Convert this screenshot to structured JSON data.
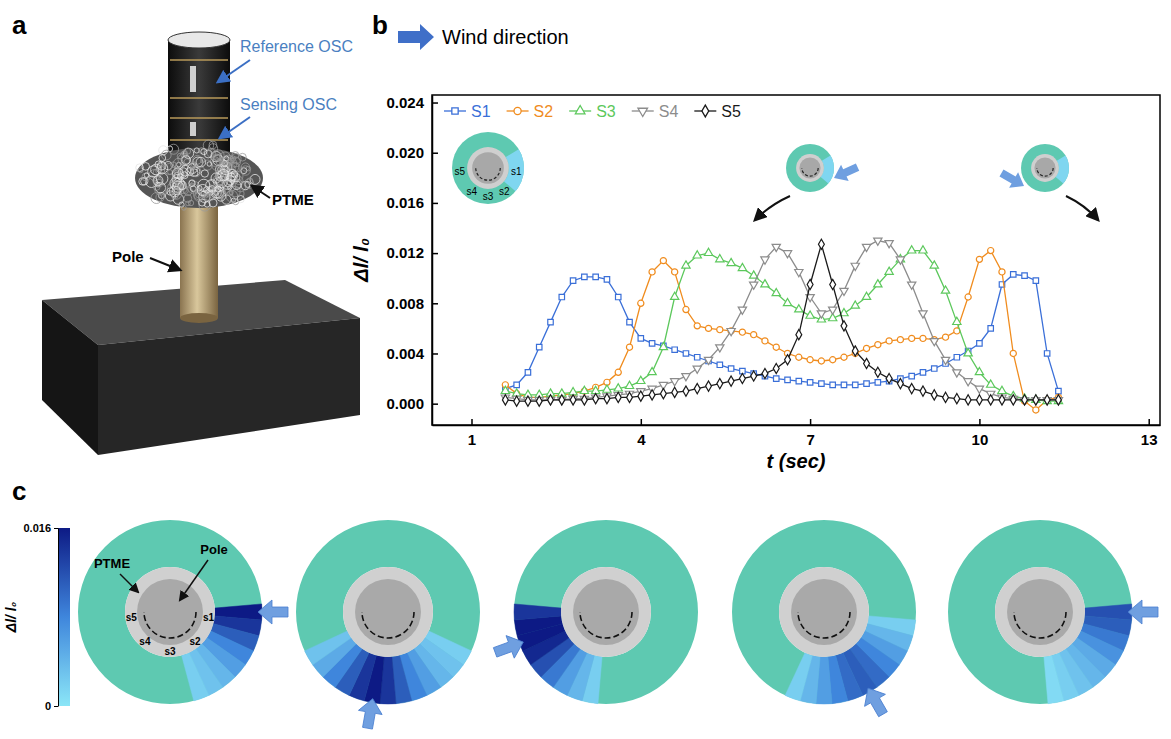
{
  "panel_labels": [
    "a",
    "b",
    "c"
  ],
  "diagram": {
    "labels": [
      "Reference OSC",
      "Sensing OSC",
      "PTME",
      "Pole"
    ]
  },
  "chart_data": [
    {
      "type": "line",
      "annotations": [
        "Wind direction"
      ],
      "xlabel": "t (sec)",
      "ylabel": "Δl/ l₀",
      "x": [
        1.6,
        1.8,
        2,
        2.2,
        2.4,
        2.6,
        2.8,
        3,
        3.2,
        3.4,
        3.6,
        3.8,
        4,
        4.2,
        4.4,
        4.6,
        4.8,
        5,
        5.2,
        5.4,
        5.6,
        5.8,
        6,
        6.2,
        6.4,
        6.6,
        6.8,
        7,
        7.2,
        7.4,
        7.6,
        7.8,
        8,
        8.2,
        8.4,
        8.6,
        8.8,
        9,
        9.2,
        9.4,
        9.6,
        9.8,
        10,
        10.2,
        10.4,
        10.6,
        10.8,
        11,
        11.2,
        11.4
      ],
      "xlim": [
        0.3,
        13.2
      ],
      "xticks": [
        1,
        4,
        7,
        10,
        13
      ],
      "ylim": [
        -0.0017,
        0.0246
      ],
      "yticks": [
        {
          "value": 0,
          "label": "0.000"
        },
        0.004,
        0.008,
        0.012,
        0.016,
        {
          "value": 0.02,
          "label": "0.020"
        },
        0.024
      ],
      "grid": false,
      "legend": "upper left",
      "inset_labels": [
        "s1",
        "s2",
        "s3",
        "s4",
        "s5"
      ],
      "series": [
        {
          "name": "S1",
          "color": "#3a6fd8",
          "marker": "square",
          "values": [
            0.0012,
            0.0015,
            0.0025,
            0.0045,
            0.0065,
            0.0085,
            0.0098,
            0.0101,
            0.0101,
            0.0099,
            0.0085,
            0.0065,
            0.0052,
            0.0048,
            0.0046,
            0.0043,
            0.004,
            0.0037,
            0.0034,
            0.0031,
            0.0028,
            0.0026,
            0.0024,
            0.0022,
            0.002,
            0.0019,
            0.0018,
            0.0017,
            0.0016,
            0.0015,
            0.0015,
            0.0015,
            0.0016,
            0.0017,
            0.0018,
            0.002,
            0.0022,
            0.0025,
            0.0028,
            0.0032,
            0.0037,
            0.0042,
            0.0048,
            0.006,
            0.0095,
            0.0103,
            0.0102,
            0.0098,
            0.004,
            0.001
          ]
        },
        {
          "name": "S2",
          "color": "#f08c1e",
          "marker": "circle",
          "values": [
            0.0015,
            0.0008,
            0.0005,
            0.0005,
            0.0006,
            0.0007,
            0.0008,
            0.001,
            0.0013,
            0.0017,
            0.0025,
            0.0045,
            0.008,
            0.0105,
            0.0114,
            0.0105,
            0.0075,
            0.0062,
            0.006,
            0.0059,
            0.0058,
            0.0057,
            0.0055,
            0.005,
            0.0045,
            0.004,
            0.0037,
            0.0035,
            0.0034,
            0.0035,
            0.0037,
            0.004,
            0.0044,
            0.0047,
            0.005,
            0.0051,
            0.0052,
            0.0052,
            0.0051,
            0.0053,
            0.0058,
            0.0085,
            0.0115,
            0.0122,
            0.0105,
            0.004,
            0.0002,
            -0.0005,
            0.0003,
            0.0005
          ]
        },
        {
          "name": "S3",
          "color": "#5cc85c",
          "marker": "triangle-up",
          "values": [
            0.001,
            0.0008,
            0.0007,
            0.0007,
            0.0008,
            0.0008,
            0.0009,
            0.001,
            0.001,
            0.0011,
            0.0012,
            0.0014,
            0.0018,
            0.0025,
            0.0045,
            0.0085,
            0.011,
            0.0118,
            0.012,
            0.0115,
            0.0112,
            0.0108,
            0.0102,
            0.0095,
            0.0088,
            0.008,
            0.0075,
            0.007,
            0.0067,
            0.0068,
            0.0072,
            0.0078,
            0.0085,
            0.0095,
            0.0105,
            0.0115,
            0.0122,
            0.0122,
            0.011,
            0.009,
            0.0065,
            0.004,
            0.0025,
            0.0015,
            0.001,
            0.0006,
            0.0004,
            0.0003,
            0.0002,
            0.0002
          ]
        },
        {
          "name": "S4",
          "color": "#8c8c8c",
          "marker": "triangle-down",
          "values": [
            0.0005,
            0.0004,
            0.0003,
            0.0003,
            0.0003,
            0.0003,
            0.0004,
            0.0004,
            0.0005,
            0.0006,
            0.0007,
            0.0008,
            0.001,
            0.0012,
            0.0015,
            0.0018,
            0.0022,
            0.0028,
            0.0035,
            0.0045,
            0.0058,
            0.0075,
            0.0095,
            0.0115,
            0.0125,
            0.012,
            0.0105,
            0.0085,
            0.0072,
            0.0075,
            0.009,
            0.011,
            0.0125,
            0.013,
            0.0128,
            0.0115,
            0.0095,
            0.0072,
            0.005,
            0.0035,
            0.0025,
            0.0018,
            0.0012,
            0.0008,
            0.0005,
            0.0004,
            0.0003,
            0.0003,
            0.0003,
            0.0003
          ]
        },
        {
          "name": "S5",
          "color": "#1a1a1a",
          "marker": "diamond",
          "values": [
            0.0003,
            0.0002,
            0.0002,
            0.0002,
            0.0003,
            0.0003,
            0.0003,
            0.0003,
            0.0004,
            0.0004,
            0.0005,
            0.0005,
            0.0006,
            0.0007,
            0.0008,
            0.0009,
            0.001,
            0.0012,
            0.0014,
            0.0016,
            0.0018,
            0.002,
            0.0022,
            0.0024,
            0.0028,
            0.0035,
            0.0055,
            0.0095,
            0.0127,
            0.0095,
            0.0062,
            0.0042,
            0.0032,
            0.0025,
            0.002,
            0.0016,
            0.0012,
            0.001,
            0.0007,
            0.0005,
            0.0004,
            0.0003,
            0.0003,
            0.0003,
            0.0003,
            0.0003,
            0.0003,
            0.0003,
            0.0003,
            0.0003
          ]
        }
      ]
    },
    {
      "type": "polar_heatmap",
      "labels": {
        "ptme": "PTME",
        "pole": "Pole"
      },
      "sensor_labels": [
        "s1",
        "s2",
        "s3",
        "s4",
        "s5"
      ],
      "angles": [
        0,
        10,
        20,
        30,
        40,
        50,
        60,
        70,
        80,
        90,
        100,
        110,
        120,
        130,
        140,
        150,
        160,
        170,
        180
      ],
      "colorbar": {
        "label": "Δl/ l₀",
        "range": [
          0,
          0.016
        ],
        "ticks": [
          0,
          0.016
        ]
      },
      "snapshots": [
        {
          "wind_angle": 0,
          "values": [
            0.016,
            0.014,
            0.011,
            0.008,
            0.006,
            0.004,
            0.003,
            0.002,
            null,
            null,
            null,
            null,
            null,
            null,
            null,
            null,
            null,
            null,
            null
          ]
        },
        {
          "wind_angle": 100,
          "values": [
            null,
            null,
            null,
            0.002,
            0.003,
            0.004,
            0.006,
            0.008,
            0.011,
            0.014,
            0.016,
            0.014,
            0.011,
            0.008,
            0.005,
            0.003,
            null,
            null,
            null
          ]
        },
        {
          "wind_angle": 160,
          "values": [
            null,
            null,
            null,
            null,
            null,
            null,
            null,
            null,
            null,
            null,
            0.002,
            0.004,
            0.006,
            0.009,
            0.012,
            0.015,
            0.016,
            0.016,
            0.014
          ]
        },
        {
          "wind_angle": 60,
          "values": [
            null,
            0.002,
            0.004,
            0.006,
            0.008,
            0.01,
            0.011,
            0.01,
            0.008,
            0.006,
            0.004,
            0.002,
            null,
            null,
            null,
            null,
            null,
            null,
            null
          ]
        },
        {
          "wind_angle": 0,
          "values": [
            0.012,
            0.011,
            0.009,
            0.007,
            0.005,
            0.004,
            0.003,
            0.002,
            0.001,
            null,
            null,
            null,
            null,
            null,
            null,
            null,
            null,
            null,
            null
          ]
        }
      ]
    }
  ]
}
